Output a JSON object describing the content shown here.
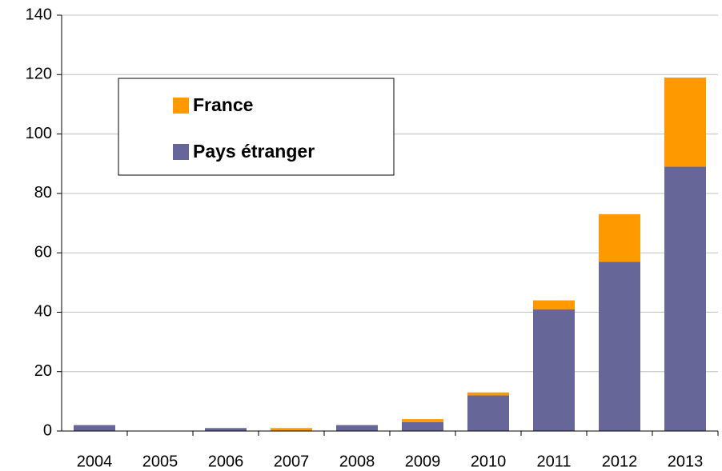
{
  "chart_data": {
    "type": "stacked_bar",
    "categories": [
      "2004",
      "2005",
      "2006",
      "2007",
      "2008",
      "2009",
      "2010",
      "2011",
      "2012",
      "2013"
    ],
    "series": [
      {
        "name": "Pays étranger",
        "color": "#666699",
        "values": [
          2,
          0,
          1,
          0,
          2,
          3,
          12,
          41,
          57,
          89
        ]
      },
      {
        "name": "France",
        "color": "#ff9900",
        "values": [
          0,
          0,
          0,
          1,
          0,
          1,
          1,
          3,
          16,
          30
        ]
      }
    ],
    "ylim": [
      0,
      140
    ],
    "yticks": [
      0,
      20,
      40,
      60,
      80,
      100,
      120,
      140
    ],
    "grid": true
  }
}
